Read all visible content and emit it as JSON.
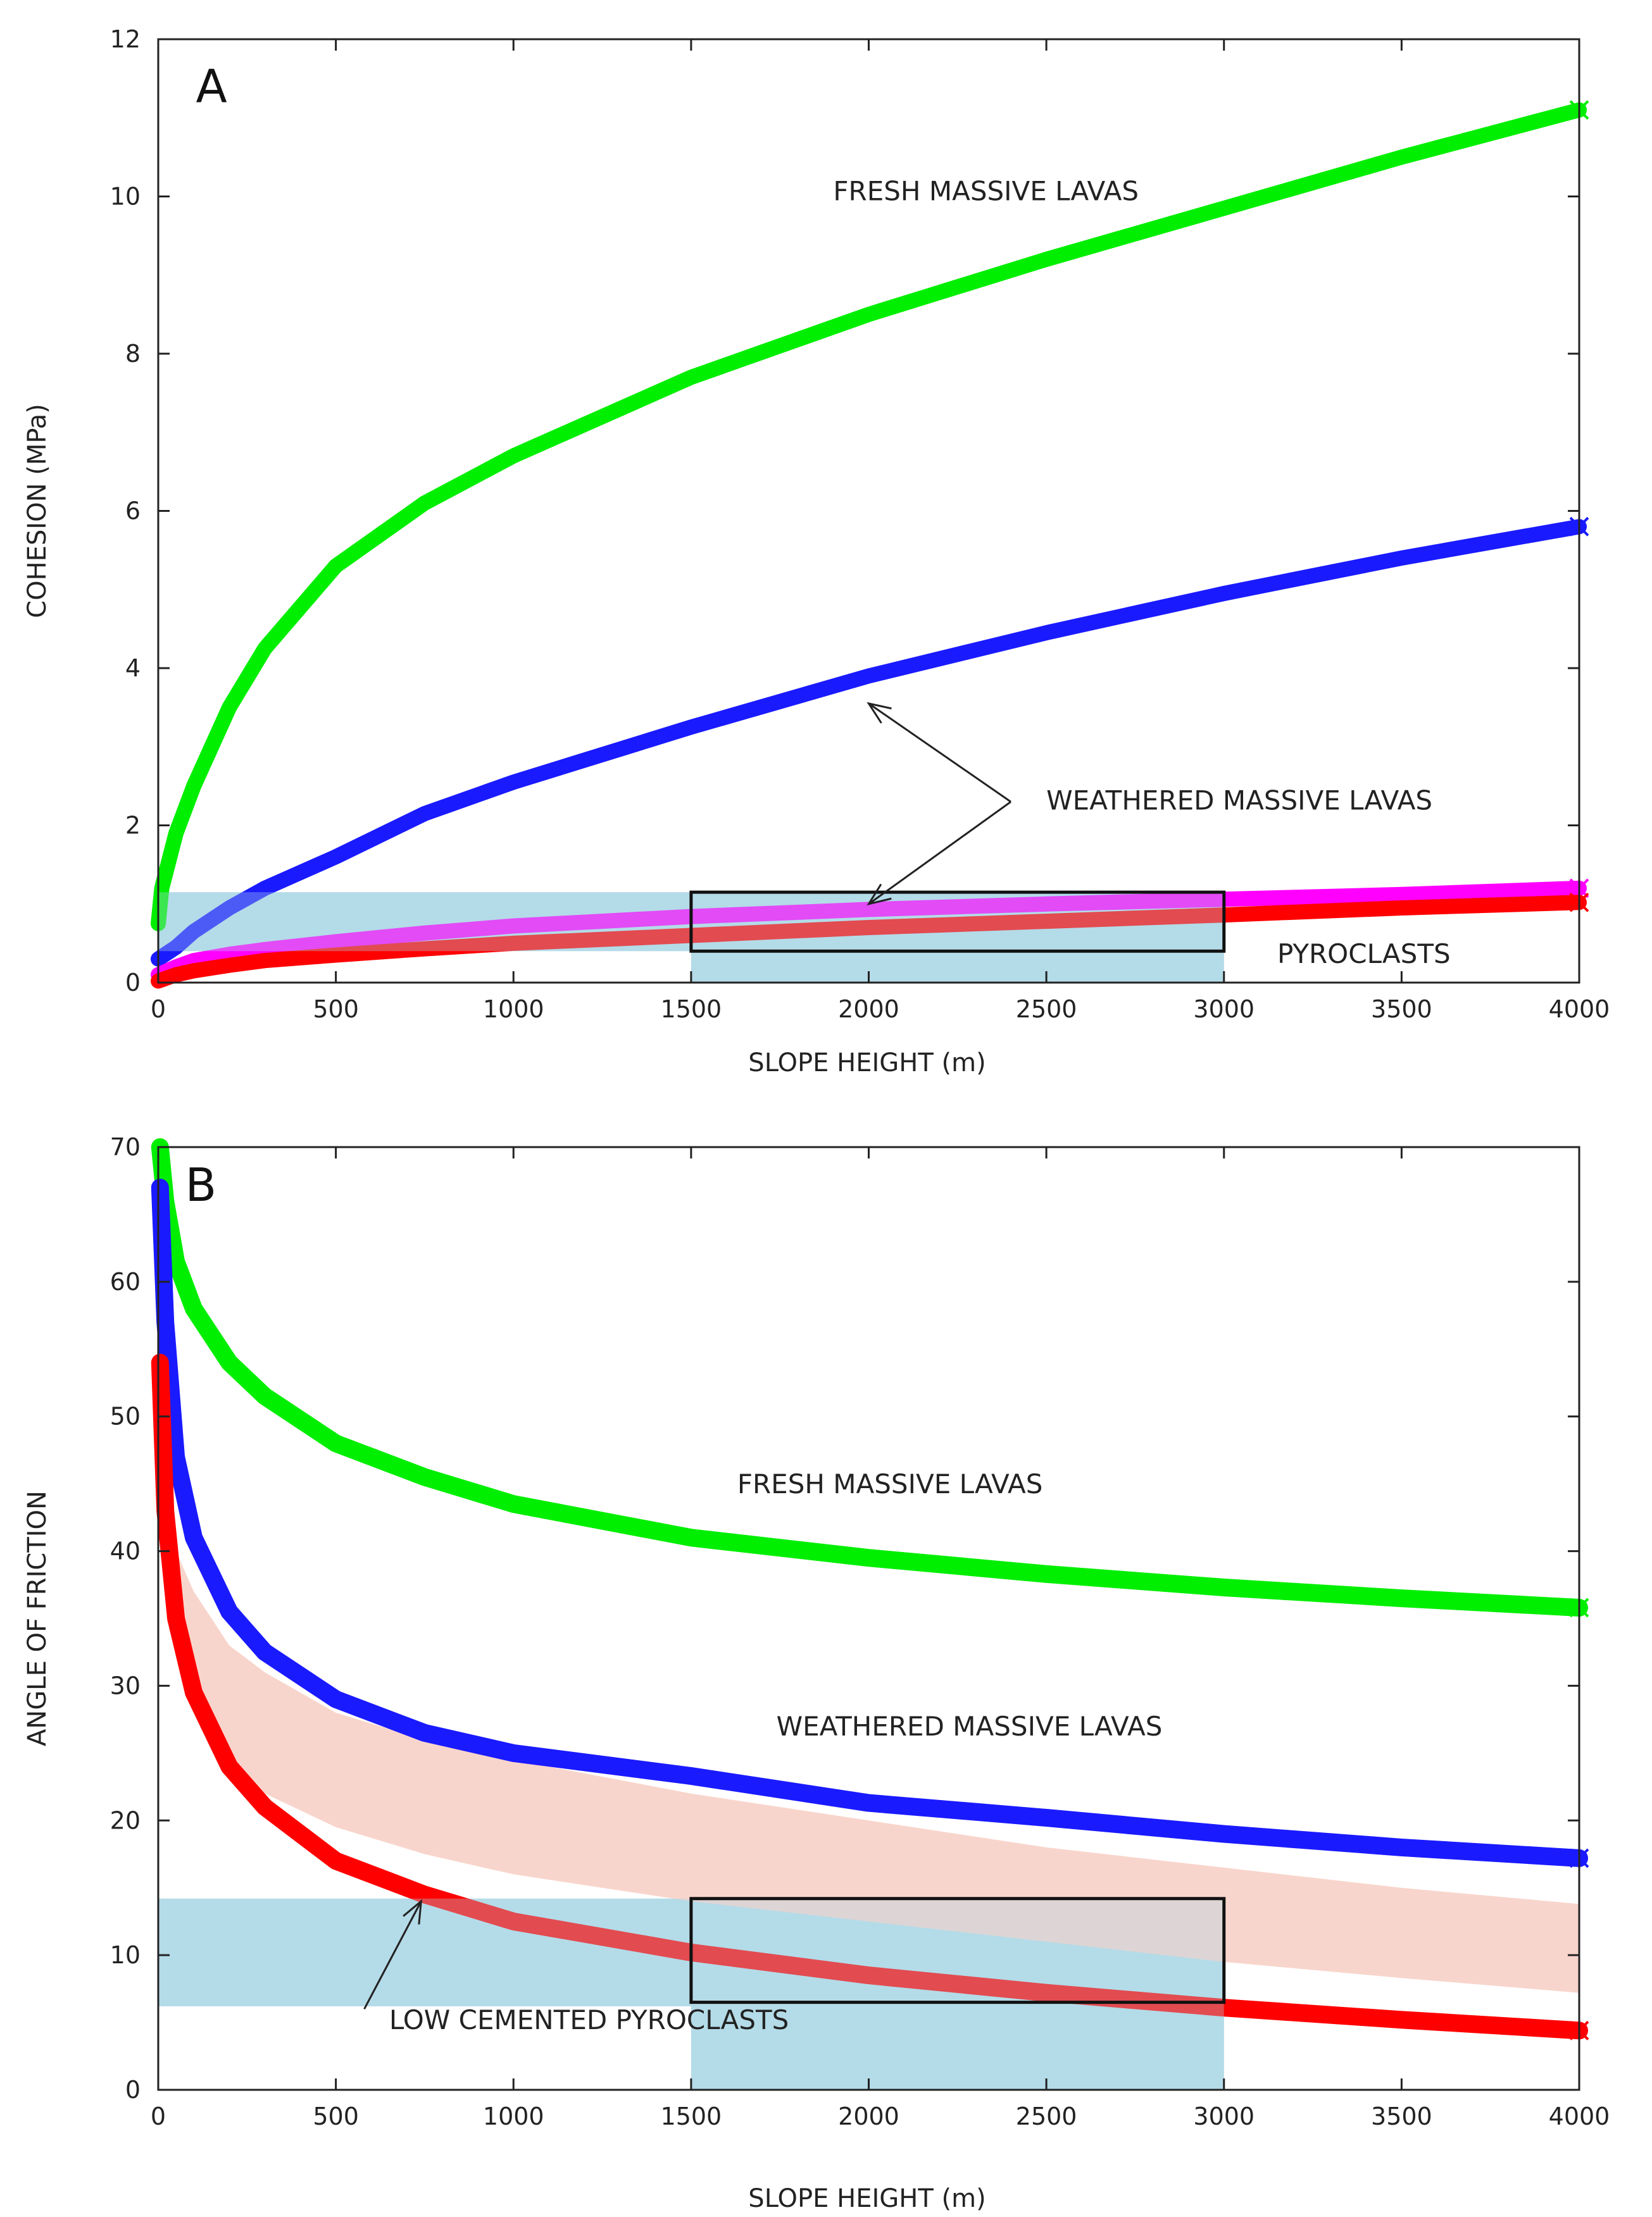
{
  "chart_data": [
    {
      "type": "line",
      "panel_label": "A",
      "xlabel": "SLOPE HEIGHT (m)",
      "ylabel": "COHESION (MPa)",
      "xlim": [
        0,
        4000
      ],
      "ylim": [
        0,
        12
      ],
      "x_ticks": [
        "0",
        "500",
        "1000",
        "1500",
        "2000",
        "2500",
        "3000",
        "3500",
        "4000"
      ],
      "y_ticks": [
        "0",
        "2",
        "4",
        "6",
        "8",
        "10",
        "12"
      ],
      "series": [
        {
          "name": "FRESH MASSIVE LAVAS",
          "color": "#00ee00",
          "x": [
            0,
            10,
            50,
            100,
            200,
            300,
            500,
            750,
            1000,
            1500,
            2000,
            2500,
            3000,
            3500,
            4000
          ],
          "y": [
            0.75,
            1.2,
            1.9,
            2.5,
            3.5,
            4.25,
            5.3,
            6.1,
            6.7,
            7.7,
            8.5,
            9.2,
            9.85,
            10.5,
            11.1
          ]
        },
        {
          "name": "WEATHERED MASSIVE LAVAS",
          "color": "#1a1aff",
          "x": [
            0,
            50,
            100,
            200,
            300,
            500,
            750,
            1000,
            1500,
            2000,
            2500,
            3000,
            3500,
            4000
          ],
          "y": [
            0.3,
            0.45,
            0.65,
            0.95,
            1.2,
            1.6,
            2.15,
            2.55,
            3.25,
            3.9,
            4.45,
            4.95,
            5.4,
            5.8
          ]
        },
        {
          "name": "PYROCLASTS (upper)",
          "color": "#ff00ff",
          "x": [
            0,
            50,
            100,
            200,
            300,
            500,
            750,
            1000,
            1500,
            2000,
            2500,
            3000,
            3500,
            4000
          ],
          "y": [
            0.1,
            0.2,
            0.28,
            0.36,
            0.42,
            0.52,
            0.63,
            0.72,
            0.84,
            0.93,
            1.0,
            1.06,
            1.12,
            1.2
          ]
        },
        {
          "name": "PYROCLASTS (lower)",
          "color": "#ff0000",
          "x": [
            0,
            50,
            100,
            200,
            300,
            500,
            750,
            1000,
            1500,
            2000,
            2500,
            3000,
            3500,
            4000
          ],
          "y": [
            0.02,
            0.1,
            0.15,
            0.22,
            0.28,
            0.35,
            0.43,
            0.5,
            0.6,
            0.7,
            0.78,
            0.86,
            0.95,
            1.02
          ]
        }
      ],
      "bands": [
        {
          "label": "horizontal range",
          "x": [
            0,
            1500
          ],
          "y": [
            0.4,
            1.15
          ],
          "color": "#add8e6"
        },
        {
          "label": "vertical range",
          "x": [
            1500,
            3000
          ],
          "y": [
            0,
            1.15
          ],
          "color": "#add8e6"
        }
      ],
      "box": {
        "x": [
          1500,
          3000
        ],
        "y": [
          0.4,
          1.15
        ]
      },
      "annotations": [
        {
          "text": "A",
          "x": 150,
          "y": 11.2,
          "kind": "panel"
        },
        {
          "text": "FRESH MASSIVE LAVAS",
          "x": 1900,
          "y": 9.95
        },
        {
          "text": "WEATHERED MASSIVE LAVAS",
          "x": 2500,
          "y": 2.2
        },
        {
          "text": "PYROCLASTS",
          "x": 3150,
          "y": 0.25
        }
      ],
      "arrows": [
        {
          "from": [
            2400,
            2.3
          ],
          "to": [
            2000,
            3.55
          ]
        },
        {
          "from": [
            2400,
            2.3
          ],
          "to": [
            2000,
            1.0
          ]
        }
      ]
    },
    {
      "type": "line",
      "panel_label": "B",
      "xlabel": "SLOPE HEIGHT (m)",
      "ylabel": "ANGLE OF FRICTION",
      "xlim": [
        0,
        4000
      ],
      "ylim": [
        0,
        70
      ],
      "x_ticks": [
        "0",
        "500",
        "1000",
        "1500",
        "2000",
        "2500",
        "3000",
        "3500",
        "4000"
      ],
      "y_ticks": [
        "0",
        "10",
        "20",
        "30",
        "40",
        "50",
        "60",
        "70"
      ],
      "series": [
        {
          "name": "FRESH MASSIVE LAVAS",
          "color": "#00ee00",
          "x": [
            5,
            20,
            50,
            100,
            200,
            300,
            500,
            750,
            1000,
            1500,
            2000,
            2500,
            3000,
            3500,
            4000
          ],
          "y": [
            70,
            66,
            61.5,
            58,
            54,
            51.5,
            48,
            45.5,
            43.5,
            41,
            39.5,
            38.3,
            37.3,
            36.5,
            35.8
          ]
        },
        {
          "name": "WEATHERED MASSIVE LAVAS",
          "color": "#1a1aff",
          "x": [
            5,
            20,
            50,
            100,
            200,
            300,
            500,
            750,
            1000,
            1500,
            2000,
            2500,
            3000,
            3500,
            4000
          ],
          "y": [
            67,
            57,
            47,
            41,
            35.5,
            32.5,
            29,
            26.5,
            25,
            23.3,
            21.3,
            20.2,
            19,
            18,
            17.2
          ]
        },
        {
          "name": "LOW CEMENTED PYROCLASTS",
          "color": "#ff0000",
          "x": [
            5,
            20,
            50,
            100,
            200,
            300,
            500,
            750,
            1000,
            1500,
            2000,
            2500,
            3000,
            3500,
            4000
          ],
          "y": [
            54,
            43,
            35,
            29.5,
            24,
            21,
            17,
            14.5,
            12.5,
            10.2,
            8.5,
            7.2,
            6.1,
            5.2,
            4.4
          ]
        }
      ],
      "shaded_band": {
        "color": "#f8d5cc",
        "x": [
          50,
          100,
          200,
          300,
          500,
          750,
          1000,
          1500,
          2000,
          2500,
          3000,
          3500,
          4000
        ],
        "upper": [
          40,
          37,
          33,
          31,
          28,
          26,
          24.5,
          22,
          20,
          18,
          16.5,
          15,
          13.8
        ],
        "lower": [
          34,
          30,
          25,
          22,
          19.5,
          17.5,
          16,
          14,
          12.5,
          11,
          9.5,
          8.3,
          7.2
        ]
      },
      "bands": [
        {
          "label": "horizontal range",
          "x": [
            0,
            1500
          ],
          "y": [
            6.2,
            14.2
          ],
          "color": "#add8e6"
        },
        {
          "label": "vertical range",
          "x": [
            1500,
            3000
          ],
          "y": [
            0,
            14.2
          ],
          "color": "#add8e6"
        }
      ],
      "box": {
        "x": [
          1500,
          3000
        ],
        "y": [
          6.5,
          14.2
        ]
      },
      "annotations": [
        {
          "text": "B",
          "x": 120,
          "y": 66,
          "kind": "panel"
        },
        {
          "text": "FRESH MASSIVE LAVAS",
          "x": 1630,
          "y": 44.3
        },
        {
          "text": "WEATHERED MASSIVE LAVAS",
          "x": 1740,
          "y": 26.3
        },
        {
          "text": "LOW CEMENTED PYROCLASTS",
          "x": 650,
          "y": 4.5
        }
      ],
      "arrows": [
        {
          "from": [
            580,
            6
          ],
          "to": [
            740,
            14
          ]
        }
      ]
    }
  ]
}
